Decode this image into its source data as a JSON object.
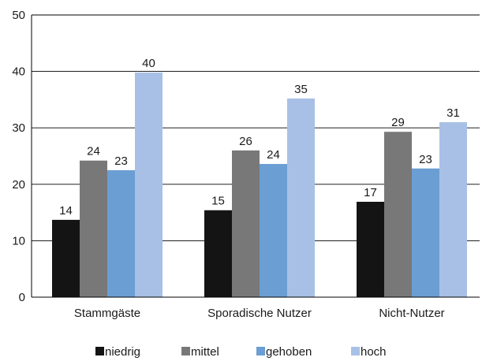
{
  "chart_data": {
    "type": "bar",
    "categories": [
      "Stammgäste",
      "Sporadische Nutzer",
      "Nicht-Nutzer"
    ],
    "series": [
      {
        "name": "niedrig",
        "values": [
          14,
          15,
          17
        ],
        "color": "#141414"
      },
      {
        "name": "mittel",
        "values": [
          24,
          26,
          29
        ],
        "color": "#787878"
      },
      {
        "name": "gehoben",
        "values": [
          23,
          24,
          23
        ],
        "color": "#6b9ed3"
      },
      {
        "name": "hoch",
        "values": [
          40,
          35,
          31
        ],
        "color": "#a8c0e6"
      }
    ],
    "bar_values_read": [
      [
        13.7,
        15.4,
        16.9
      ],
      [
        24.2,
        26.0,
        29.3
      ],
      [
        22.5,
        23.6,
        22.8
      ],
      [
        39.8,
        35.2,
        31.0
      ]
    ],
    "yticks": [
      0,
      10,
      20,
      30,
      40,
      50
    ],
    "ylim": [
      0,
      50
    ],
    "grid": true,
    "legend": "bottom"
  }
}
